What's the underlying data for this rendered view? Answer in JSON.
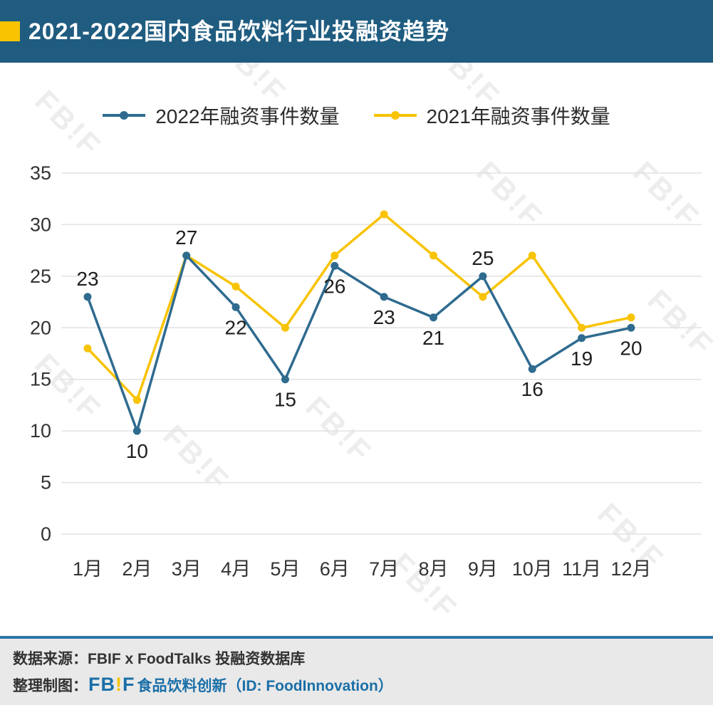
{
  "header": {
    "title": "2021-2022国内食品饮料行业投融资趋势"
  },
  "chart_data": {
    "type": "line",
    "categories": [
      "1月",
      "2月",
      "3月",
      "4月",
      "5月",
      "6月",
      "7月",
      "8月",
      "9月",
      "10月",
      "11月",
      "12月"
    ],
    "series": [
      {
        "name": "2022年融资事件数量",
        "color": "#2f6b8f",
        "values": [
          23,
          10,
          27,
          22,
          15,
          26,
          23,
          21,
          25,
          16,
          19,
          20
        ],
        "show_labels": true,
        "label_above_indices": [
          0,
          2,
          8
        ]
      },
      {
        "name": "2021年融资事件数量",
        "color": "#f8c300",
        "values": [
          18,
          13,
          27,
          24,
          20,
          27,
          31,
          27,
          23,
          27,
          20,
          21
        ],
        "show_labels": false
      }
    ],
    "ylim": [
      0,
      35
    ],
    "yticks": [
      0,
      5,
      10,
      15,
      20,
      25,
      30,
      35
    ],
    "grid": true,
    "legend_position": "top",
    "title": "",
    "xlabel": "",
    "ylabel": ""
  },
  "watermark": {
    "text": "FB!F"
  },
  "footer": {
    "source_line": "数据来源：FBIF x FoodTalks 投融资数据库",
    "credit_prefix": "整理制图：",
    "logo_fb": "FB",
    "logo_bang": "!",
    "logo_f": "F",
    "credit_suffix": "食品饮料创新（ID: FoodInnovation）"
  },
  "colors": {
    "header_bg": "#1f5c80",
    "accent": "#f8c300",
    "series_2022": "#2f6b8f",
    "series_2021": "#f8c300",
    "footer_text_blue": "#1a6fa8"
  }
}
